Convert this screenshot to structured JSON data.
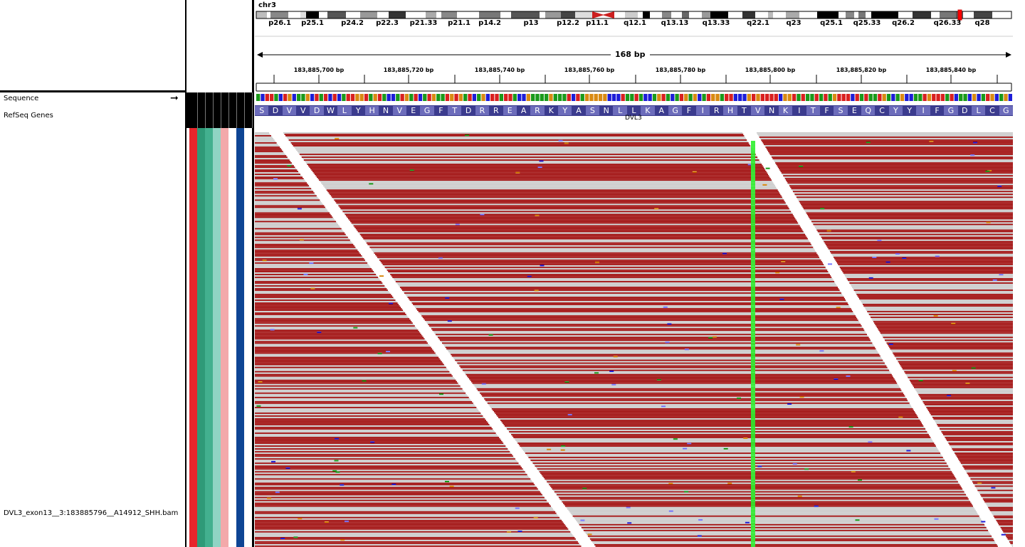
{
  "chromosome": "chr3",
  "ideogram": {
    "bands": [
      "p26.1",
      "p25.1",
      "p24.2",
      "p22.3",
      "p21.33",
      "p21.1",
      "p14.2",
      "p13",
      "p12.2",
      "p11.1",
      "q12.1",
      "q13.13",
      "q13.33",
      "q22.1",
      "q23",
      "q25.1",
      "q25.33",
      "q26.2",
      "q26.33",
      "q28"
    ]
  },
  "ruler": {
    "span": "168 bp",
    "positions": [
      "183,885,700 bp",
      "183,885,720 bp",
      "183,885,740 bp",
      "183,885,760 bp",
      "183,885,780 bp",
      "183,885,800 bp",
      "183,885,820 bp",
      "183,885,840 bp"
    ]
  },
  "tracks": {
    "sequence": "Sequence",
    "genes": "RefSeq Genes",
    "bam": "DVL3_exon13__3:183885796__A14912_SHH.bam"
  },
  "translation": {
    "amino_acids": [
      "S",
      "D",
      "V",
      "V",
      "D",
      "W",
      "L",
      "Y",
      "H",
      "N",
      "V",
      "E",
      "G",
      "F",
      "T",
      "D",
      "R",
      "R",
      "E",
      "A",
      "R",
      "K",
      "Y",
      "A",
      "S",
      "N",
      "L",
      "L",
      "K",
      "A",
      "G",
      "F",
      "I",
      "R",
      "H",
      "T",
      "V",
      "N",
      "K",
      "I",
      "T",
      "F",
      "S",
      "E",
      "Q",
      "C",
      "Y",
      "Y",
      "I",
      "F",
      "G",
      "D",
      "L",
      "C",
      "G"
    ],
    "gene_name": "DVL3"
  },
  "attribute_colors": [
    "#e8262c",
    "#2f9a78",
    "#43b08f",
    "#90d4c4",
    "#f3a9aa",
    "#ffffff",
    "#0e4594",
    "#ffffff"
  ],
  "colors": {
    "read_red": "#9b0000",
    "read_gray": "#c8c8c8",
    "variant_green": "#22ee22",
    "aa_dark": "#3b3b8e",
    "aa_light": "#6c6cbb"
  }
}
